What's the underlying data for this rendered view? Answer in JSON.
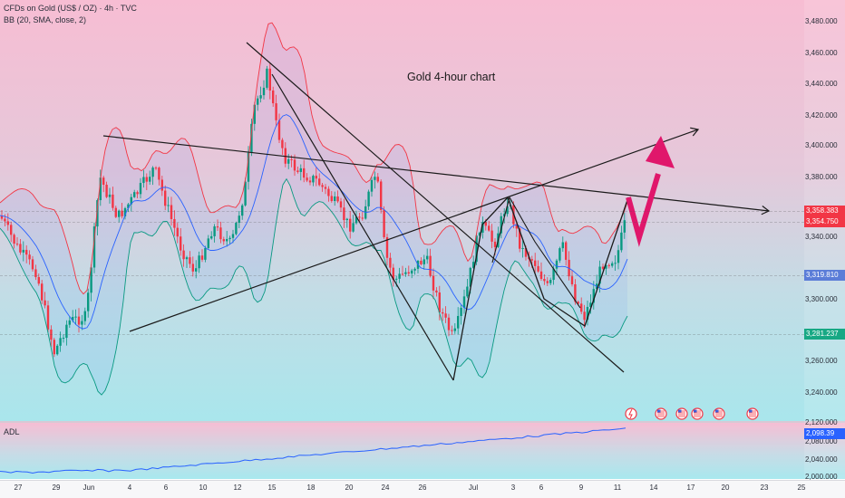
{
  "header": {
    "symbol_line": "CFDs on Gold (US$ / OZ) · 4h · TVC",
    "indicator_line": "BB (20, SMA, close, 2)",
    "adl_label": "ADL"
  },
  "annotation": "Gold 4-hour chart",
  "price_axis": {
    "ticks": [
      "3,480.000",
      "3,460.000",
      "3,440.000",
      "3,420.000",
      "3,400.000",
      "3,380.000",
      "3,340.000",
      "3,300.000",
      "3,260.000",
      "3,240.000"
    ],
    "price_tags": [
      {
        "text": "3,358.383",
        "color": "#f23645"
      },
      {
        "text": "3,354.750",
        "color": "#f23645"
      },
      {
        "text": "3,319.810",
        "color": "#5b7dd8"
      },
      {
        "text": "3,281.237",
        "color": "#17a884"
      }
    ]
  },
  "adl_axis": {
    "ticks": [
      "2,120.000",
      "2,080.000",
      "2,040.000",
      "2,000.000"
    ],
    "value_tag": "2,098.39"
  },
  "time_axis": {
    "labels": [
      "27",
      "29",
      "Jun",
      "4",
      "6",
      "10",
      "12",
      "15",
      "18",
      "20",
      "24",
      "26",
      "Jul",
      "3",
      "6",
      "9",
      "11",
      "14",
      "17",
      "20",
      "23",
      "25"
    ]
  },
  "event_icons": [
    "lightning-event",
    "us-flag-event",
    "us-flag-event",
    "us-flag-event",
    "us-flag-event",
    "us-flag-event"
  ],
  "colors": {
    "band_upper": "#f23645",
    "band_middle": "#2962ff",
    "band_lower": "#089981",
    "candle_up": "#089981",
    "candle_down": "#f23645",
    "trendline": "#1a1a1a",
    "forecast_arrow": "#e0176b",
    "adl_line": "#2962ff"
  }
}
